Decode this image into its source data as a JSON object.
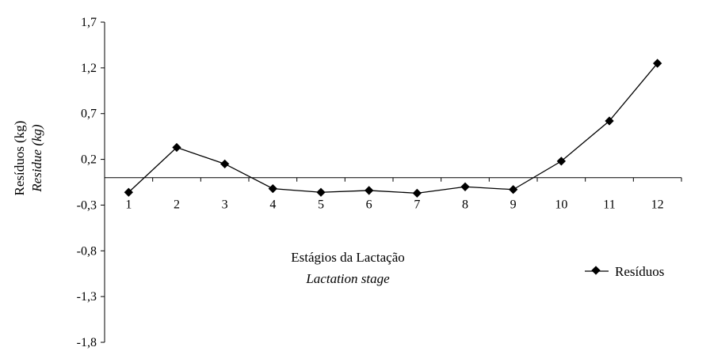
{
  "chart_data": {
    "type": "line",
    "categories": [
      "1",
      "2",
      "3",
      "4",
      "5",
      "6",
      "7",
      "8",
      "9",
      "10",
      "11",
      "12"
    ],
    "series": [
      {
        "name": "Resíduos",
        "values": [
          -0.16,
          0.33,
          0.15,
          -0.12,
          -0.16,
          -0.14,
          -0.17,
          -0.1,
          -0.13,
          0.18,
          0.62,
          1.25
        ],
        "color": "#000000",
        "marker": "diamond"
      }
    ],
    "ylim": [
      -1.8,
      1.7
    ],
    "yticks": [
      "1,7",
      "1,2",
      "0,7",
      "0,2",
      "-0,3",
      "-0,8",
      "-1,3",
      "-1,8"
    ],
    "ylabel": "Resíduos (kg)",
    "ylabel_italic": "Residue (kg)",
    "xlabel": "Estágios da Lactação",
    "xlabel_italic": "Lactation stage",
    "legend_label": "Resíduos",
    "legend_position": "right",
    "grid": false,
    "title": ""
  }
}
